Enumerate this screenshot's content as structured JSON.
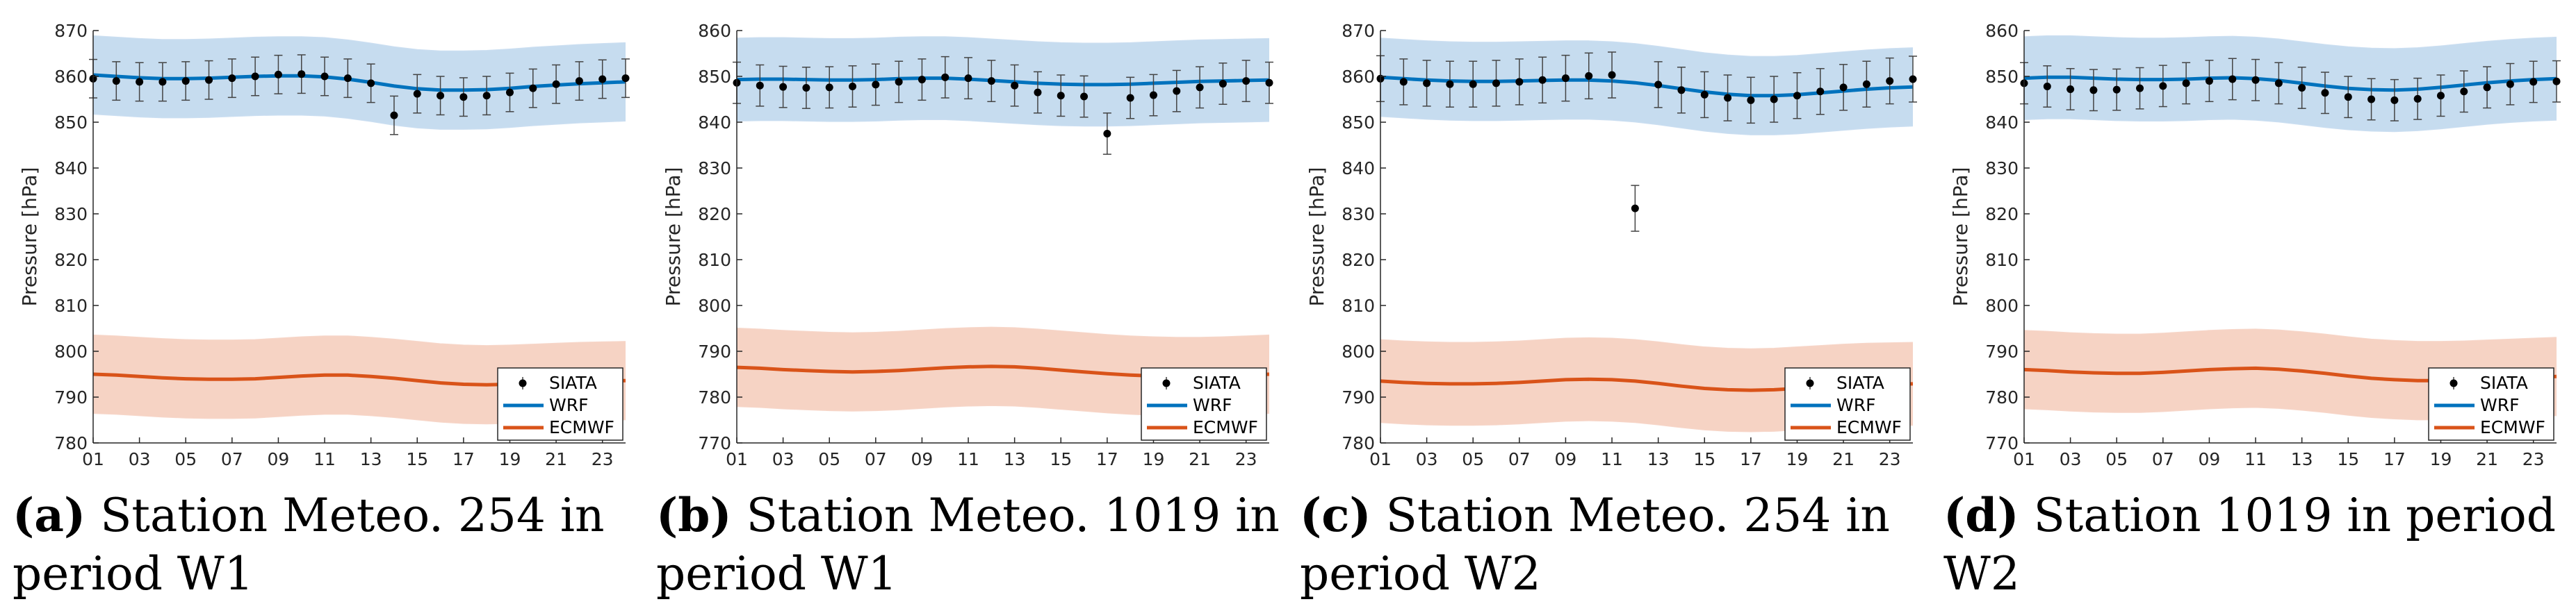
{
  "colors": {
    "wrf_line": "#0072BD",
    "wrf_band": "#C6DCEF",
    "ecmwf_line": "#D95319",
    "ecmwf_band": "#F6D3C4",
    "obs": "#000000"
  },
  "chart_data": [
    {
      "type": "line",
      "panel_label": "(a)",
      "caption": "Station Meteo.  254 in period W1",
      "ylabel": "Pressure [hPa]",
      "ylim": [
        780,
        870
      ],
      "yticks": [
        780,
        790,
        800,
        810,
        820,
        830,
        840,
        850,
        860,
        870
      ],
      "xlim": [
        1,
        24
      ],
      "xtick_labels": [
        "01",
        "03",
        "05",
        "07",
        "09",
        "11",
        "13",
        "15",
        "17",
        "19",
        "21",
        "23"
      ],
      "legend": [
        "SIATA",
        "WRF",
        "ECMWF"
      ],
      "x": [
        1,
        2,
        3,
        4,
        5,
        6,
        7,
        8,
        9,
        10,
        11,
        12,
        13,
        14,
        15,
        16,
        17,
        18,
        19,
        20,
        21,
        22,
        23,
        24
      ],
      "siata": [
        859.5,
        859,
        858.8,
        858.8,
        859,
        859.2,
        859.6,
        860,
        860.4,
        860.5,
        860,
        859.6,
        858.5,
        851.5,
        856.2,
        855.8,
        855.5,
        855.8,
        856.5,
        857.4,
        858.3,
        859,
        859.4,
        859.6
      ],
      "siata_err": 4.2,
      "wrf": [
        860.3,
        860,
        859.7,
        859.5,
        859.5,
        859.6,
        859.8,
        860,
        860.1,
        860.1,
        859.9,
        859.4,
        858.7,
        857.9,
        857.3,
        857,
        857,
        857.1,
        857.4,
        857.8,
        858.1,
        858.4,
        858.6,
        858.8
      ],
      "wrf_band": 8.5,
      "ecmwf": [
        795,
        794.8,
        794.5,
        794.2,
        794,
        793.9,
        793.9,
        794,
        794.3,
        794.6,
        794.8,
        794.8,
        794.5,
        794.1,
        793.6,
        793.1,
        792.8,
        792.7,
        792.8,
        793,
        793.2,
        793.4,
        793.5,
        793.6
      ],
      "ecmwf_band": 8.5
    },
    {
      "type": "line",
      "panel_label": "(b)",
      "caption": "Station Meteo. 1019 in period W1",
      "ylabel": "Pressure [hPa]",
      "ylim": [
        770,
        860
      ],
      "yticks": [
        770,
        780,
        790,
        800,
        810,
        820,
        830,
        840,
        850,
        860
      ],
      "xlim": [
        1,
        24
      ],
      "xtick_labels": [
        "01",
        "03",
        "05",
        "07",
        "09",
        "11",
        "13",
        "15",
        "17",
        "19",
        "21",
        "23"
      ],
      "legend": [
        "SIATA",
        "WRF",
        "ECMWF"
      ],
      "x": [
        1,
        2,
        3,
        4,
        5,
        6,
        7,
        8,
        9,
        10,
        11,
        12,
        13,
        14,
        15,
        16,
        17,
        18,
        19,
        20,
        21,
        22,
        23,
        24
      ],
      "siata": [
        848.6,
        848,
        847.7,
        847.5,
        847.6,
        847.8,
        848.2,
        848.8,
        849.3,
        849.8,
        849.6,
        849,
        848,
        846.5,
        845.8,
        845.6,
        837.5,
        845.3,
        845.9,
        846.8,
        847.6,
        848.4,
        849,
        848.6
      ],
      "siata_err": 4.5,
      "wrf": [
        849.3,
        849.4,
        849.4,
        849.3,
        849.2,
        849.2,
        849.3,
        849.5,
        849.6,
        849.6,
        849.4,
        849.1,
        848.8,
        848.5,
        848.3,
        848.2,
        848.2,
        848.3,
        848.5,
        848.7,
        848.9,
        849,
        849.1,
        849.2
      ],
      "wrf_band": 9,
      "ecmwf": [
        786.5,
        786.3,
        786,
        785.8,
        785.6,
        785.5,
        785.6,
        785.8,
        786.1,
        786.4,
        786.6,
        786.7,
        786.6,
        786.3,
        785.9,
        785.5,
        785.1,
        784.8,
        784.6,
        784.5,
        784.5,
        784.6,
        784.8,
        785
      ],
      "ecmwf_band": 8.5
    },
    {
      "type": "line",
      "panel_label": "(c)",
      "caption": "Station Meteo.  254 in period W2",
      "ylabel": "Pressure [hPa]",
      "ylim": [
        780,
        870
      ],
      "yticks": [
        780,
        790,
        800,
        810,
        820,
        830,
        840,
        850,
        860,
        870
      ],
      "xlim": [
        1,
        24
      ],
      "xtick_labels": [
        "01",
        "03",
        "05",
        "07",
        "09",
        "11",
        "13",
        "15",
        "17",
        "19",
        "21",
        "23"
      ],
      "legend": [
        "SIATA",
        "WRF",
        "ECMWF"
      ],
      "x": [
        1,
        2,
        3,
        4,
        5,
        6,
        7,
        8,
        9,
        10,
        11,
        12,
        13,
        14,
        15,
        16,
        17,
        18,
        19,
        20,
        21,
        22,
        23,
        24
      ],
      "siata": [
        859.5,
        858.8,
        858.5,
        858.3,
        858.3,
        858.5,
        858.8,
        859.2,
        859.6,
        860.1,
        860.3,
        831.2,
        858.2,
        857,
        856,
        855.3,
        854.8,
        855,
        855.8,
        856.7,
        857.6,
        858.3,
        859,
        859.4
      ],
      "siata_err": 5,
      "wrf": [
        859.8,
        859.5,
        859.2,
        859,
        858.9,
        858.9,
        859,
        859.1,
        859.2,
        859.2,
        859,
        858.6,
        858,
        857.3,
        856.6,
        856.1,
        855.8,
        855.8,
        856,
        856.4,
        856.8,
        857.2,
        857.5,
        857.7
      ],
      "wrf_band": 8.5,
      "ecmwf": [
        793.5,
        793.2,
        793,
        792.9,
        792.9,
        793,
        793.2,
        793.5,
        793.8,
        793.9,
        793.8,
        793.5,
        793,
        792.4,
        791.9,
        791.6,
        791.5,
        791.6,
        791.9,
        792.2,
        792.5,
        792.7,
        792.8,
        792.9
      ],
      "ecmwf_band": 9
    },
    {
      "type": "line",
      "panel_label": "(d)",
      "caption": "Station 1019 in period W2",
      "ylabel": "Pressure [hPa]",
      "ylim": [
        770,
        860
      ],
      "yticks": [
        770,
        780,
        790,
        800,
        810,
        820,
        830,
        840,
        850,
        860
      ],
      "xlim": [
        1,
        24
      ],
      "xtick_labels": [
        "01",
        "03",
        "05",
        "07",
        "09",
        "11",
        "13",
        "15",
        "17",
        "19",
        "21",
        "23"
      ],
      "legend": [
        "SIATA",
        "WRF",
        "ECMWF"
      ],
      "x": [
        1,
        2,
        3,
        4,
        5,
        6,
        7,
        8,
        9,
        10,
        11,
        12,
        13,
        14,
        15,
        16,
        17,
        18,
        19,
        20,
        21,
        22,
        23,
        24
      ],
      "siata": [
        848.5,
        847.8,
        847.2,
        847,
        847.1,
        847.4,
        847.9,
        848.5,
        849,
        849.4,
        849.2,
        848.5,
        847.5,
        846.4,
        845.5,
        845,
        844.8,
        845.1,
        845.8,
        846.7,
        847.6,
        848.3,
        848.8,
        848.9
      ],
      "siata_err": 4.5,
      "wrf": [
        849.6,
        849.8,
        849.8,
        849.6,
        849.4,
        849.3,
        849.3,
        849.4,
        849.6,
        849.7,
        849.5,
        849.1,
        848.5,
        847.9,
        847.4,
        847.1,
        847,
        847.2,
        847.6,
        848.1,
        848.6,
        849,
        849.3,
        849.5
      ],
      "wrf_band": 9,
      "ecmwf": [
        786,
        785.8,
        785.5,
        785.3,
        785.2,
        785.2,
        785.4,
        785.7,
        786,
        786.2,
        786.3,
        786.1,
        785.7,
        785.2,
        784.6,
        784.1,
        783.8,
        783.6,
        783.6,
        783.7,
        783.9,
        784.1,
        784.3,
        784.5
      ],
      "ecmwf_band": 8.5
    }
  ]
}
